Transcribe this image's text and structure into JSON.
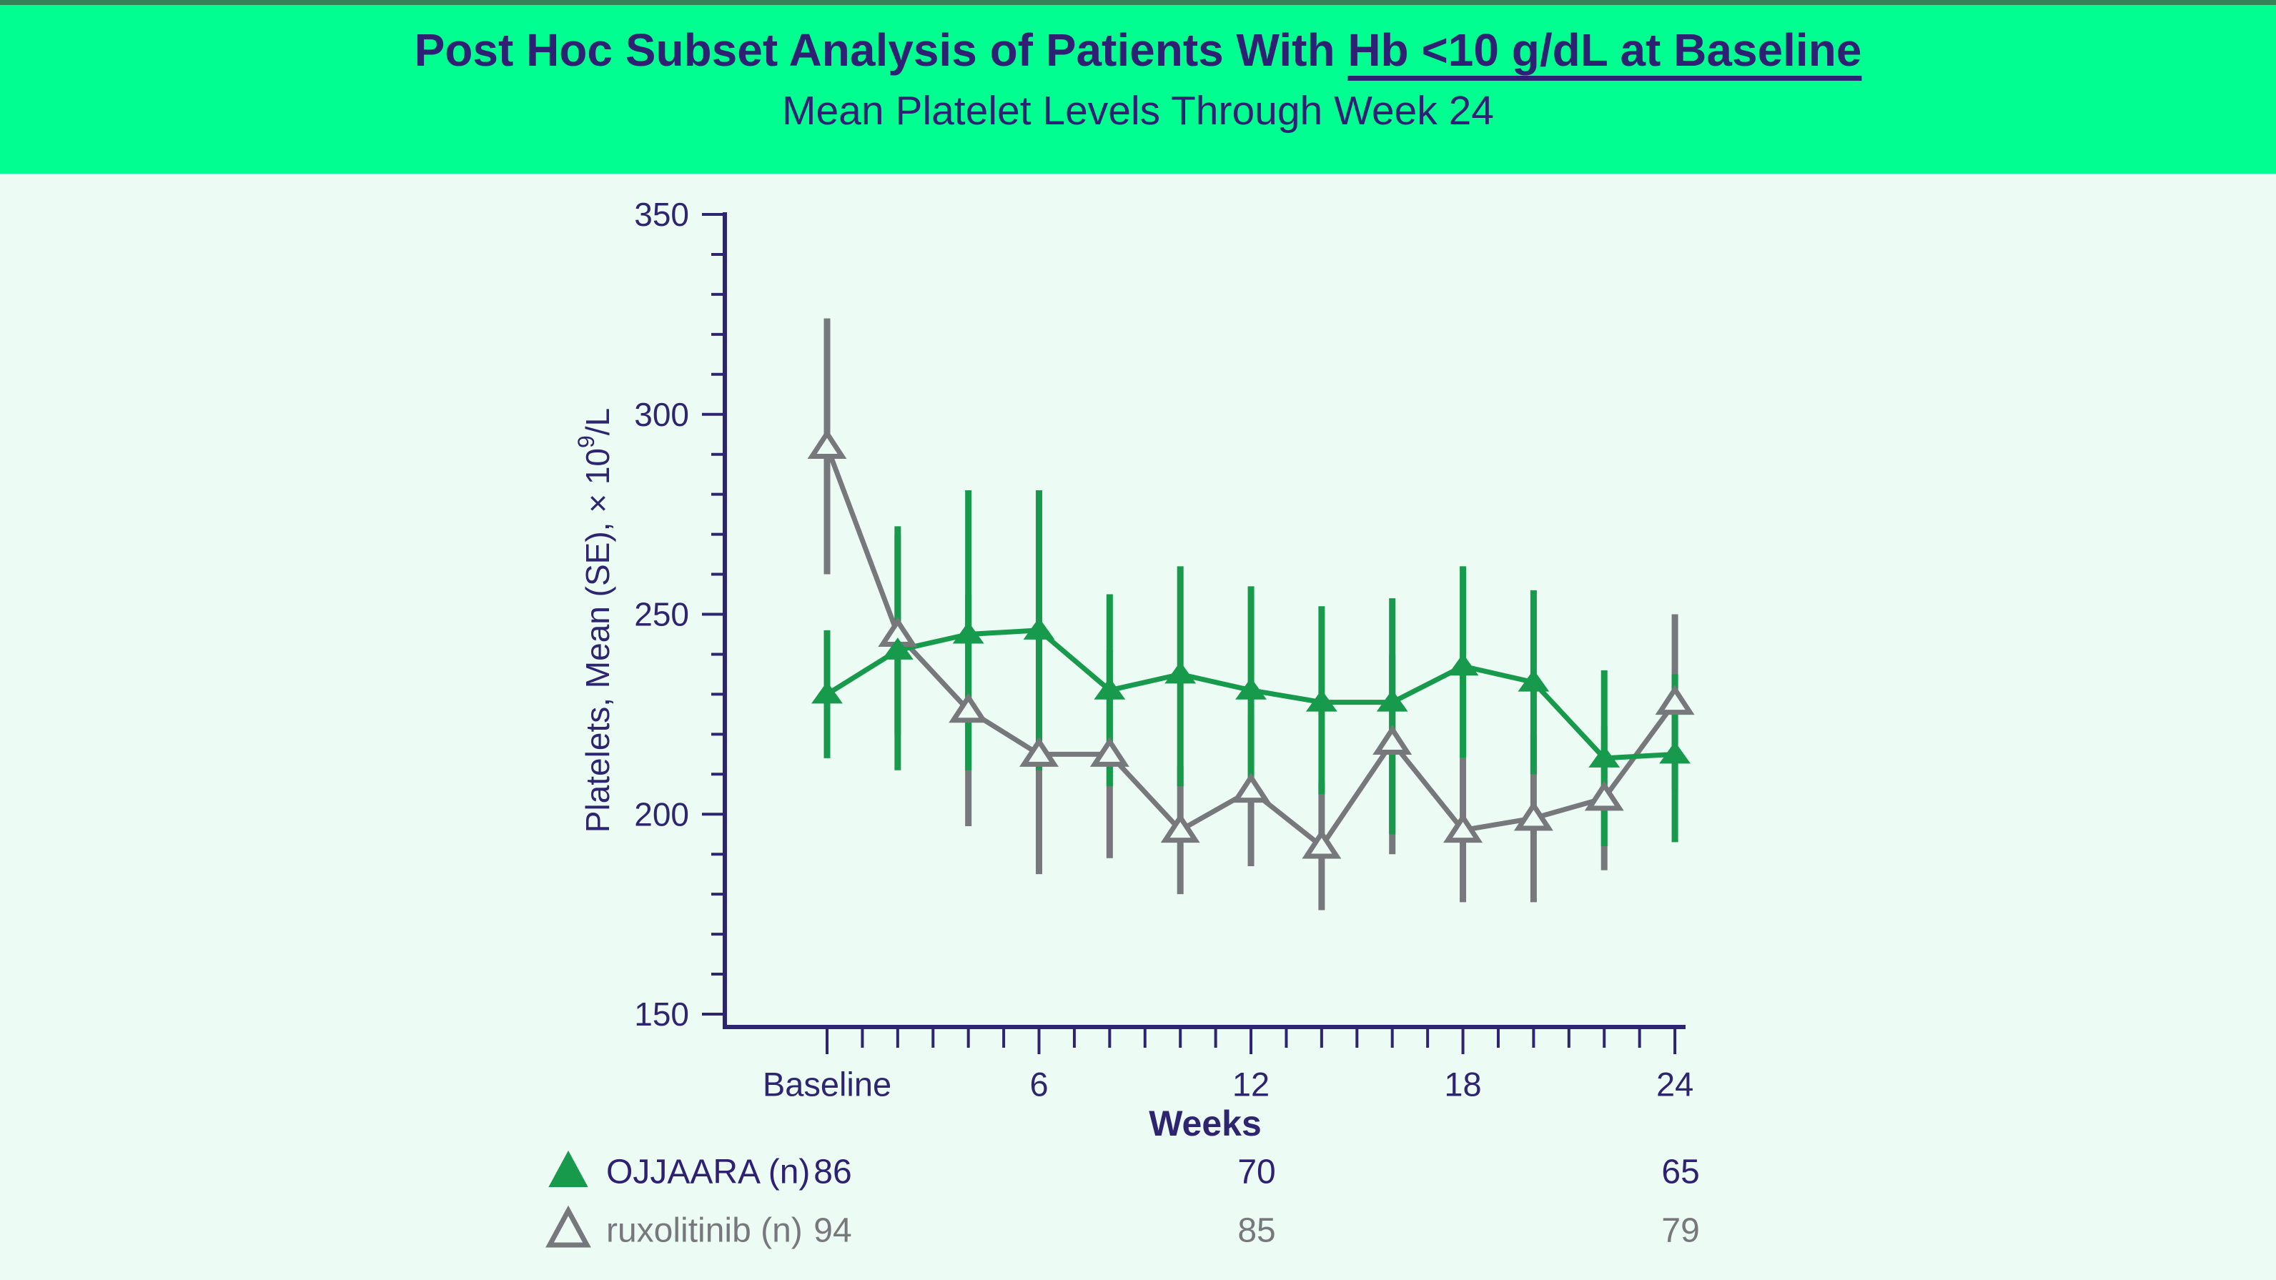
{
  "banner": {
    "title_prefix": "Post Hoc Subset Analysis of Patients With ",
    "title_underlined": "Hb <10 g/dL at Baseline",
    "subtitle": "Mean Platelet Levels Through Week 24",
    "bg_color": "#00FE90",
    "top_strip_color": "#318759",
    "text_color": "#2E2173"
  },
  "colors": {
    "page_bg": "#EDFBF5",
    "axis": "#2E2570",
    "ojjaara_green": "#179A4B",
    "ruxolitinib_gray": "#77787B"
  },
  "chart_data": {
    "type": "line",
    "title": "Mean Platelet Levels Through Week 24",
    "x_weeks": [
      0,
      2,
      4,
      6,
      8,
      10,
      12,
      14,
      16,
      18,
      20,
      22,
      24
    ],
    "x_axis": {
      "label": "Weeks",
      "major_ticks": [
        {
          "week": 0,
          "label": "Baseline"
        },
        {
          "week": 6,
          "label": "6"
        },
        {
          "week": 12,
          "label": "12"
        },
        {
          "week": 18,
          "label": "18"
        },
        {
          "week": 24,
          "label": "24"
        }
      ],
      "minor_tick_every_weeks": 1,
      "range_weeks": [
        0,
        24
      ]
    },
    "y_axis": {
      "label_prefix": "Platelets, Mean (SE), × 10",
      "label_sup": "9",
      "label_suffix": "/L",
      "major_ticks": [
        150,
        200,
        250,
        300,
        350
      ],
      "minor_tick_step": 10,
      "range": [
        150,
        350
      ]
    },
    "grid": false,
    "legend_position": "bottom",
    "series": [
      {
        "name": "OJJAARA",
        "color": "#179A4B",
        "marker": "triangle-filled",
        "means": [
          230,
          241,
          245,
          246,
          231,
          235,
          231,
          228,
          228,
          237,
          233,
          214,
          215
        ],
        "err_lo": [
          214,
          211,
          211,
          211,
          207,
          207,
          207,
          205,
          195,
          214,
          210,
          192,
          193
        ],
        "err_hi": [
          246,
          272,
          281,
          281,
          255,
          262,
          257,
          252,
          254,
          262,
          256,
          236,
          235
        ]
      },
      {
        "name": "ruxolitinib",
        "color": "#77787B",
        "marker": "triangle-open",
        "means": [
          292,
          245,
          226,
          215,
          215,
          196,
          206,
          192,
          218,
          196,
          199,
          204,
          228
        ],
        "err_lo": [
          260,
          220,
          197,
          185,
          189,
          180,
          187,
          176,
          190,
          178,
          178,
          186,
          206
        ],
        "err_hi": [
          324,
          270,
          255,
          245,
          241,
          212,
          225,
          208,
          240,
          214,
          220,
          222,
          250
        ]
      }
    ],
    "legend": {
      "count_weeks": [
        0,
        12,
        24
      ],
      "rows": [
        {
          "label": "OJJAARA (n)",
          "marker": "triangle-filled",
          "color": "#179A4B",
          "text_color": "#2E2173",
          "counts": [
            "86",
            "70",
            "65"
          ]
        },
        {
          "label": "ruxolitinib (n)",
          "marker": "triangle-open",
          "color": "#77787B",
          "text_color": "#77787B",
          "counts": [
            "94",
            "85",
            "79"
          ]
        }
      ]
    }
  }
}
